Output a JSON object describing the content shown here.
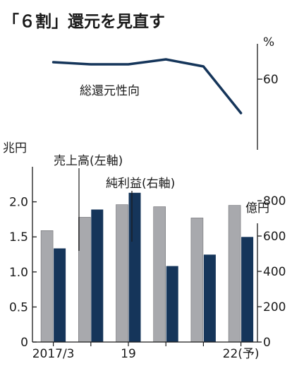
{
  "chart_data": {
    "type": "bar",
    "title": "「６割」還元を見直す",
    "colors": {
      "payout": "#15355a",
      "sales": "#a8a9ad",
      "profit": "#15355a",
      "axis": "#1a1a1a"
    },
    "payout_chart": {
      "type": "line",
      "unit": "%",
      "tick_labels": [
        "60"
      ],
      "ylim": [
        40,
        70
      ],
      "series": [
        {
          "name": "総還元性向",
          "values": [
            64.8,
            64.2,
            64.2,
            65.6,
            63.6,
            50.4
          ]
        }
      ]
    },
    "bar_chart": {
      "categories": [
        "2017/3",
        "",
        "19",
        "",
        "",
        "22(予)"
      ],
      "left_axis": {
        "unit": "兆円",
        "ylim": [
          0,
          2.5
        ],
        "tick_labels": [
          "0",
          "0.5",
          "1.0",
          "1.5",
          "2.0"
        ]
      },
      "right_axis": {
        "unit": "億円",
        "ylim": [
          0,
          1000
        ],
        "tick_labels": [
          "0",
          "200",
          "400",
          "600",
          "800"
        ]
      },
      "series": [
        {
          "name": "売上高(左軸)",
          "axis": "left",
          "values": [
            1.59,
            1.78,
            1.96,
            1.93,
            1.77,
            1.95
          ]
        },
        {
          "name": "純利益(右軸)",
          "axis": "right",
          "values": [
            530,
            750,
            845,
            430,
            495,
            595
          ]
        }
      ]
    }
  }
}
